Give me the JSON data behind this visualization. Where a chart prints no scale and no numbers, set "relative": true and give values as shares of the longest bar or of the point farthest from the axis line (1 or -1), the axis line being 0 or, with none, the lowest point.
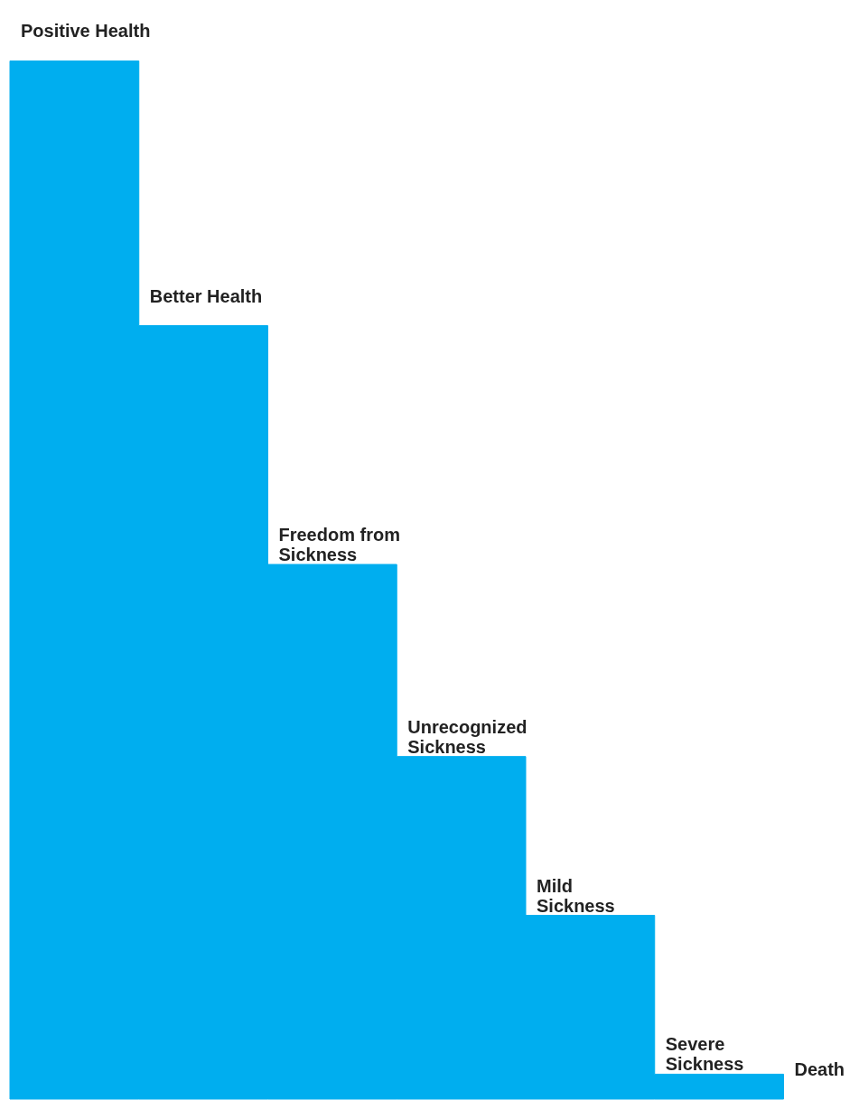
{
  "chart_data": {
    "type": "area",
    "relative": true,
    "categories": [
      null,
      null,
      null,
      null,
      null,
      null,
      null
    ],
    "series": [
      {
        "color": "#00aeef",
        "values": [
          1,
          0.745,
          0.515,
          0.33,
          0.177,
          0.024,
          0
        ]
      }
    ],
    "annotations": [
      "Positive Health",
      "Better Health",
      "Freedom from\nSickness",
      "Unrecognized\nSickness",
      "Mild\nSickness",
      "Severe\nSickness",
      "Death"
    ]
  }
}
